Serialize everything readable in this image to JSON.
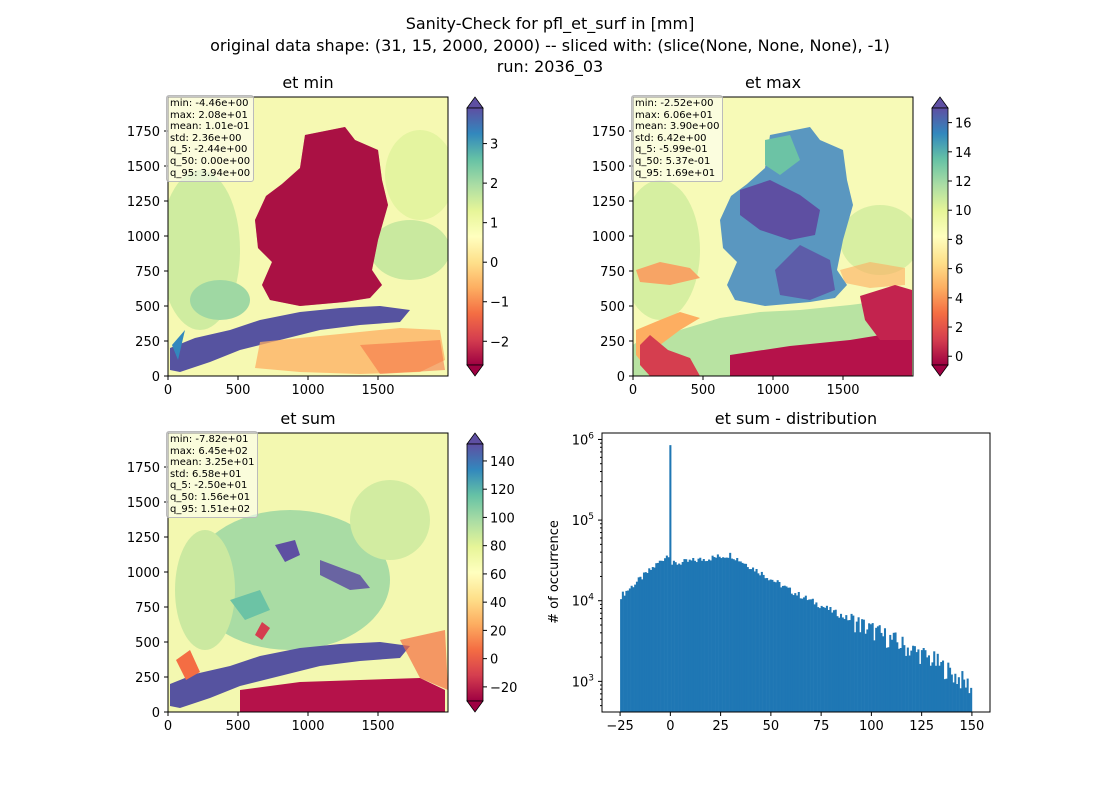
{
  "suptitle": {
    "line1": "Sanity-Check for pfl_et_surf in [mm]",
    "line2": "original data shape: (31, 15, 2000, 2000) -- sliced with: (slice(None, None, None), -1)",
    "line3": "run: 2036_03"
  },
  "chart_data": [
    {
      "type": "heatmap",
      "title": "et min",
      "colormap": "Spectral",
      "x_ticks": [
        "0",
        "500",
        "1000",
        "1500"
      ],
      "y_ticks": [
        "0",
        "250",
        "500",
        "750",
        "1000",
        "1250",
        "1500",
        "1750"
      ],
      "xlim": [
        0,
        2000
      ],
      "ylim": [
        0,
        2000
      ],
      "colorbar": {
        "ticks": [
          "−2",
          "−1",
          "0",
          "1",
          "2",
          "3"
        ],
        "tick_values": [
          -2,
          -1,
          0,
          1,
          2,
          3
        ],
        "range": [
          -2.6,
          3.9
        ],
        "extend": "both"
      },
      "stats": [
        "min: -4.46e+00",
        "max: 2.08e+01",
        "mean: 1.01e-01",
        "std: 2.36e+00",
        "q_5: -2.44e+00",
        "q_50: 0.00e+00",
        "q_95: 3.94e+00"
      ]
    },
    {
      "type": "heatmap",
      "title": "et max",
      "colormap": "Spectral",
      "x_ticks": [
        "0",
        "500",
        "1000",
        "1500"
      ],
      "y_ticks": [
        "0",
        "250",
        "500",
        "750",
        "1000",
        "1250",
        "1500",
        "1750"
      ],
      "xlim": [
        0,
        2000
      ],
      "ylim": [
        0,
        2000
      ],
      "colorbar": {
        "ticks": [
          "0",
          "2",
          "4",
          "6",
          "8",
          "10",
          "12",
          "14",
          "16"
        ],
        "tick_values": [
          0,
          2,
          4,
          6,
          8,
          10,
          12,
          14,
          16
        ],
        "range": [
          -0.6,
          17.0
        ],
        "extend": "both"
      },
      "stats": [
        "min: -2.52e+00",
        "max: 6.06e+01",
        "mean: 3.90e+00",
        "std: 6.42e+00",
        "q_5: -5.99e-01",
        "q_50: 5.37e-01",
        "q_95: 1.69e+01"
      ]
    },
    {
      "type": "heatmap",
      "title": "et sum",
      "colormap": "Spectral",
      "x_ticks": [
        "0",
        "500",
        "1000",
        "1500"
      ],
      "y_ticks": [
        "0",
        "250",
        "500",
        "750",
        "1000",
        "1250",
        "1500",
        "1750"
      ],
      "xlim": [
        0,
        2000
      ],
      "ylim": [
        0,
        2000
      ],
      "colorbar": {
        "ticks": [
          "−20",
          "0",
          "20",
          "40",
          "60",
          "80",
          "100",
          "120",
          "140"
        ],
        "tick_values": [
          -20,
          0,
          20,
          40,
          60,
          80,
          100,
          120,
          140
        ],
        "range": [
          -30,
          152
        ],
        "extend": "both"
      },
      "stats": [
        "min: -7.82e+01",
        "max: 6.45e+02",
        "mean: 3.25e+01",
        "std: 6.58e+01",
        "q_5: -2.50e+01",
        "q_50: 1.56e+01",
        "q_95: 1.51e+02"
      ]
    },
    {
      "type": "bar",
      "title": "et sum - distribution",
      "xlabel": "",
      "ylabel": "# of occurrence",
      "log_y": true,
      "xlim": [
        -34,
        159
      ],
      "ylim_log10": [
        2.62,
        6.08
      ],
      "x_ticks": [
        "−25",
        "0",
        "25",
        "50",
        "75",
        "100",
        "125",
        "150"
      ],
      "x_tick_values": [
        -25,
        0,
        25,
        50,
        75,
        100,
        125,
        150
      ],
      "y_ticks": [
        {
          "base": "10",
          "exp": "3",
          "value": 1000
        },
        {
          "base": "10",
          "exp": "4",
          "value": 10000
        },
        {
          "base": "10",
          "exp": "5",
          "value": 100000
        },
        {
          "base": "10",
          "exp": "6",
          "value": 1000000
        }
      ],
      "color": "#1f77b4",
      "bin_start": -25,
      "bin_end": 150,
      "bin_count": 200,
      "spike_at": 0,
      "spike_value": 850000
    }
  ]
}
